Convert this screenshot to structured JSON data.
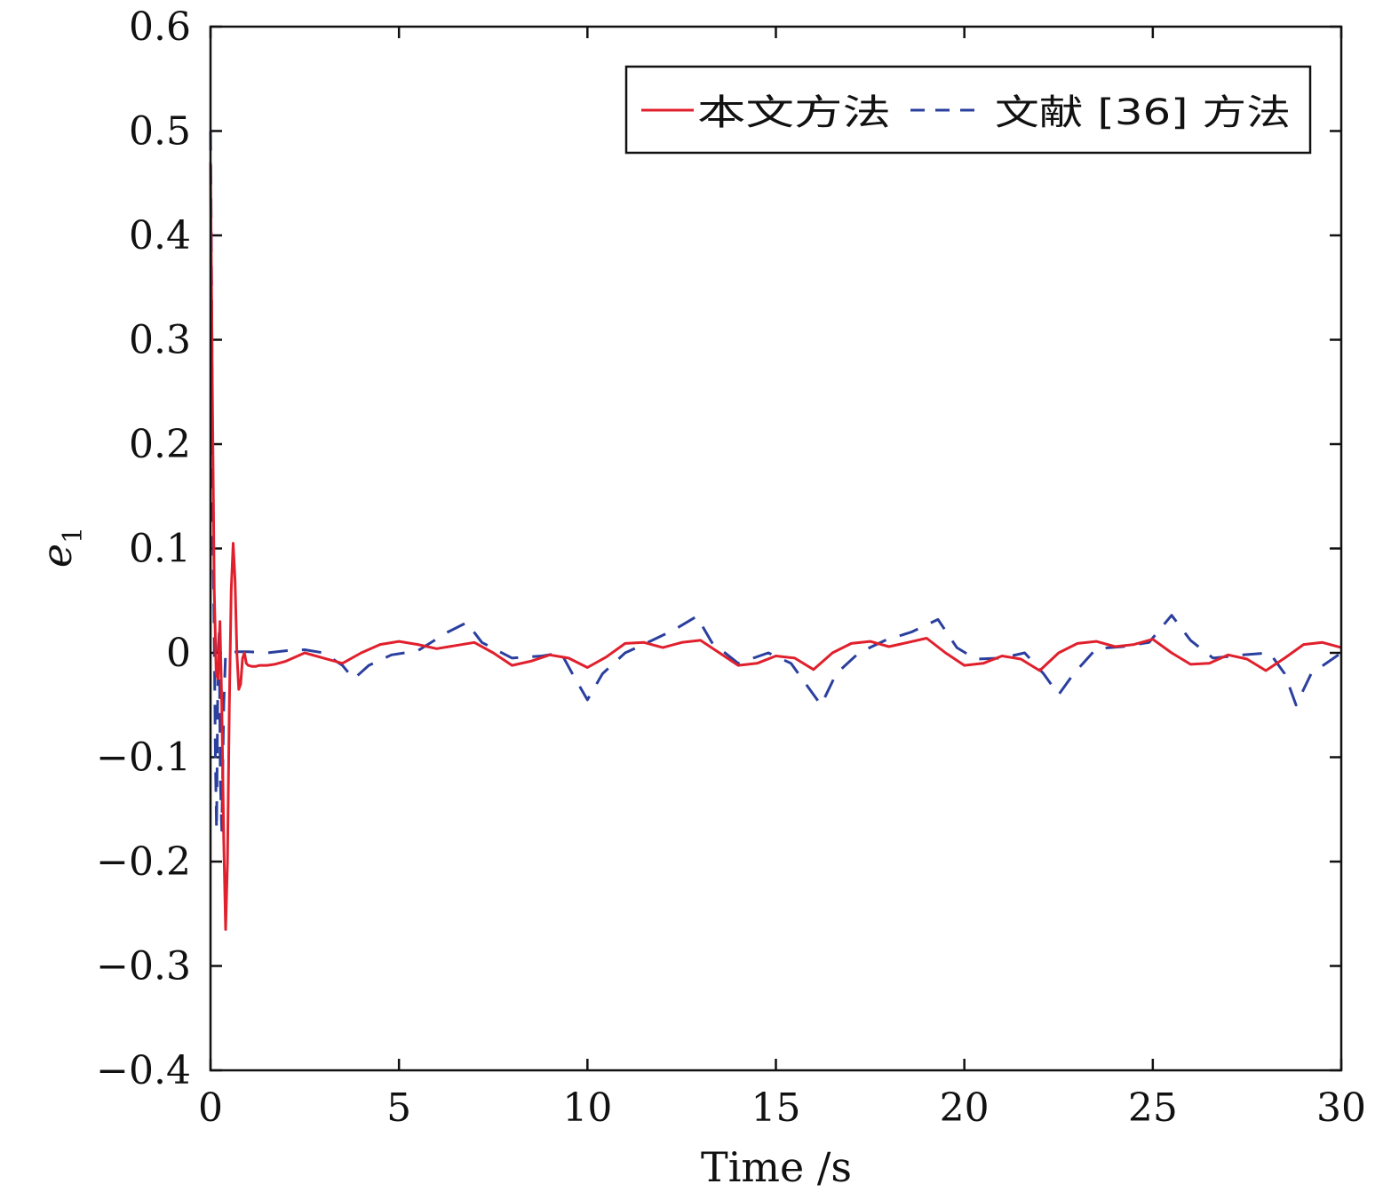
{
  "chart_data": {
    "type": "line",
    "xlabel": "Time /s",
    "ylabel": "e",
    "ylabel_subscript": "1",
    "xlim": [
      0,
      30
    ],
    "ylim": [
      -0.4,
      0.6
    ],
    "xticks": [
      0,
      5,
      10,
      15,
      20,
      25,
      30
    ],
    "yticks": [
      -0.4,
      -0.3,
      -0.2,
      -0.1,
      0,
      0.1,
      0.2,
      0.3,
      0.4,
      0.5,
      0.6
    ],
    "ytick_labels": [
      "−0.4",
      "−0.3",
      "−0.2",
      "−0.1",
      "0",
      "0.1",
      "0.2",
      "0.3",
      "0.4",
      "0.5",
      "0.6"
    ],
    "grid": false,
    "legend_position": "top-right",
    "legend_text": "本文方法 文献 [36] 方法",
    "series": [
      {
        "name": "本文方法",
        "color": "#e0202c",
        "dash": "solid",
        "x": [
          0,
          0.05,
          0.1,
          0.15,
          0.2,
          0.25,
          0.3,
          0.35,
          0.4,
          0.45,
          0.5,
          0.55,
          0.6,
          0.65,
          0.7,
          0.75,
          0.8,
          0.85,
          0.9,
          0.95,
          1.0,
          1.1,
          1.2,
          1.3,
          1.4,
          1.5,
          1.7,
          2.0,
          2.5,
          3.0,
          3.5,
          4.0,
          4.5,
          5.0,
          5.5,
          6.0,
          6.5,
          7.0,
          7.5,
          8.0,
          8.5,
          9.0,
          9.5,
          10.0,
          10.5,
          11.0,
          11.5,
          12.0,
          12.5,
          13.0,
          13.5,
          14.0,
          14.5,
          15.0,
          15.5,
          16.0,
          16.5,
          17.0,
          17.5,
          18.0,
          18.5,
          19.0,
          19.5,
          20.0,
          20.5,
          21.0,
          21.5,
          22.0,
          22.5,
          23.0,
          23.5,
          24.0,
          24.5,
          25.0,
          25.5,
          26.0,
          26.5,
          27.0,
          27.5,
          28.0,
          28.5,
          29.0,
          29.5,
          30.0
        ],
        "y": [
          0.47,
          0.25,
          0.06,
          -0.02,
          -0.025,
          0.03,
          -0.05,
          -0.18,
          -0.265,
          -0.2,
          -0.05,
          0.06,
          0.105,
          0.07,
          0.0,
          -0.035,
          -0.03,
          -0.005,
          0.0,
          -0.01,
          -0.012,
          -0.013,
          -0.013,
          -0.012,
          -0.012,
          -0.012,
          -0.011,
          -0.008,
          0.0,
          -0.005,
          -0.01,
          0.0,
          0.008,
          0.011,
          0.008,
          0.004,
          0.007,
          0.01,
          0.0,
          -0.012,
          -0.008,
          -0.002,
          -0.005,
          -0.014,
          -0.004,
          0.009,
          0.01,
          0.005,
          0.01,
          0.012,
          0.0,
          -0.012,
          -0.01,
          -0.003,
          -0.005,
          -0.016,
          0.0,
          0.009,
          0.011,
          0.006,
          0.01,
          0.014,
          0.0,
          -0.012,
          -0.01,
          -0.003,
          -0.006,
          -0.017,
          0.0,
          0.009,
          0.011,
          0.006,
          0.008,
          0.013,
          0.0,
          -0.011,
          -0.01,
          -0.002,
          -0.006,
          -0.017,
          -0.005,
          0.008,
          0.01,
          0.005
        ]
      },
      {
        "name": "文献 [36] 方法",
        "color": "#2a3f9e",
        "dash": "dashed",
        "x": [
          0,
          0.03,
          0.06,
          0.1,
          0.13,
          0.16,
          0.2,
          0.23,
          0.26,
          0.3,
          0.35,
          0.4,
          0.5,
          0.7,
          1.0,
          1.5,
          2.0,
          2.5,
          3.0,
          3.5,
          3.8,
          4.2,
          4.8,
          5.5,
          6.3,
          6.8,
          7.2,
          8.0,
          8.8,
          9.3,
          9.6,
          10.0,
          10.4,
          11.0,
          11.6,
          12.3,
          12.9,
          13.3,
          14.0,
          14.8,
          15.4,
          15.8,
          16.2,
          16.6,
          17.2,
          17.9,
          18.6,
          19.3,
          19.8,
          20.3,
          21.0,
          21.6,
          22.1,
          22.5,
          22.9,
          23.5,
          24.2,
          24.9,
          25.5,
          26.0,
          26.6,
          27.4,
          28.1,
          28.5,
          28.8,
          29.2,
          30.0
        ],
        "y": [
          0.5,
          0.35,
          0.12,
          0.02,
          -0.1,
          -0.17,
          0.0,
          0.02,
          -0.12,
          -0.17,
          -0.05,
          0.0,
          0.0,
          0.001,
          0.001,
          0.0,
          0.002,
          0.003,
          0.0,
          -0.012,
          -0.025,
          -0.012,
          -0.002,
          0.002,
          0.02,
          0.029,
          0.01,
          -0.005,
          -0.003,
          0.0,
          -0.02,
          -0.045,
          -0.02,
          0.0,
          0.01,
          0.022,
          0.035,
          0.01,
          -0.01,
          0.0,
          -0.01,
          -0.03,
          -0.05,
          -0.02,
          0.0,
          0.012,
          0.02,
          0.032,
          0.005,
          -0.006,
          -0.005,
          0.0,
          -0.02,
          -0.04,
          -0.02,
          0.004,
          0.006,
          0.01,
          0.036,
          0.012,
          -0.005,
          -0.002,
          0.0,
          -0.02,
          -0.05,
          -0.02,
          0.0
        ]
      }
    ]
  }
}
